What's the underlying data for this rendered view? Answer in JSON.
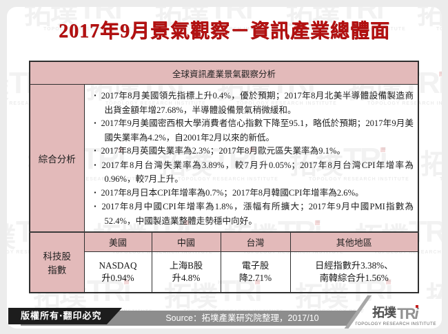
{
  "slide": {
    "title": "2017年9月景氣觀察－資訊產業總體面"
  },
  "table": {
    "header": "全球資訊產業景氣觀察分析",
    "summary": {
      "label": "綜合分析",
      "bullets": [
        "2017年8月美國領先指標上升0.4%，優於預期；2017年8月北美半導體設備製造商出貨金額年增27.68%，半導體設備景氣稍微緩和。",
        "2017年9月美國密西根大學消費者信心指數下降至95.1，略低於預期；2017年9月美國失業率為4.2%，自2001年2月以來的新低。",
        "2017年8月英國失業率為2.3%；2017年8月歐元區失業率為9.1%。",
        "2017年8月台灣失業率為3.89%，較7月升0.05%；2017年8月台灣CPI年增率為0.96%，較7月上升。",
        "2017年8月日本CPI年增率為0.7%；2017年8月韓國CPI年增率為2.6%。",
        "2017年8月中國CPI年增率為1.8%，漲幅有所擴大；2017年9月中國PMI指數為52.4%，中國製造業整體走勢穩中向好。"
      ]
    },
    "tech": {
      "label_line1": "科技股",
      "label_line2": "指數",
      "columns": [
        "美國",
        "中國",
        "台灣",
        "其他地區"
      ],
      "values": [
        {
          "line1": "NASDAQ",
          "line2": "升0.94%"
        },
        {
          "line1": "上海B股",
          "line2": "升4.8%"
        },
        {
          "line1": "電子股",
          "line2": "降2.71%"
        },
        {
          "line1": "日經指數升3.38%、",
          "line2": "南韓綜合升1.56%"
        }
      ]
    }
  },
  "footer": {
    "copyright": "版權所有‧翻印必究",
    "source": "Source：拓墣產業研究院整理，2017/10"
  },
  "logo": {
    "cjk": "拓墣",
    "latin": "TR",
    "i": "i",
    "subtitle": "TOPOLOGY RESEARCH INSTITUTE"
  },
  "watermark": {
    "cjk": "拓墣",
    "latin": "TRi",
    "subtitle": "TOPOLOGY RESEARCH INSTITUTE"
  },
  "colors": {
    "title_red": "#b41111",
    "header_pink": "#e3baba",
    "footer_black": "#1d1d1d",
    "footer_gray": "#8d8d8d",
    "logo_dot_red": "#c42020",
    "page_background": "#ececec"
  }
}
